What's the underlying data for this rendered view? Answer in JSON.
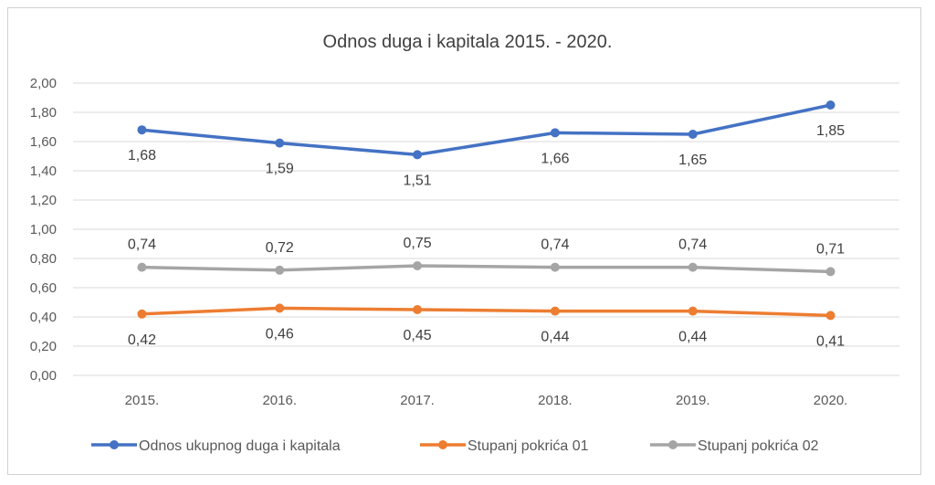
{
  "chart_data": {
    "type": "line",
    "title": "Odnos duga i kapitala 2015. - 2020.",
    "xlabel": "",
    "ylabel": "",
    "categories": [
      "2015.",
      "2016.",
      "2017.",
      "2018.",
      "2019.",
      "2020."
    ],
    "ylim": [
      0,
      2
    ],
    "yticks": [
      "0,00",
      "0,20",
      "0,40",
      "0,60",
      "0,80",
      "1,00",
      "1,20",
      "1,40",
      "1,60",
      "1,80",
      "2,00"
    ],
    "grid": true,
    "legend": "bottom",
    "series": [
      {
        "name": "Odnos ukupnog duga i kapitala",
        "color": "#4472c4",
        "values": [
          1.68,
          1.59,
          1.51,
          1.66,
          1.65,
          1.85
        ],
        "labels": [
          "1,68",
          "1,59",
          "1,51",
          "1,66",
          "1,65",
          "1,85"
        ],
        "label_pos": "below"
      },
      {
        "name": "Stupanj pokrića 01",
        "color": "#ed7d31",
        "values": [
          0.42,
          0.46,
          0.45,
          0.44,
          0.44,
          0.41
        ],
        "labels": [
          "0,42",
          "0,46",
          "0,45",
          "0,44",
          "0,44",
          "0,41"
        ],
        "label_pos": "below"
      },
      {
        "name": "Stupanj pokrića 02",
        "color": "#a5a5a5",
        "values": [
          0.74,
          0.72,
          0.75,
          0.74,
          0.74,
          0.71
        ],
        "labels": [
          "0,74",
          "0,72",
          "0,75",
          "0,74",
          "0,74",
          "0,71"
        ],
        "label_pos": "above"
      }
    ]
  }
}
